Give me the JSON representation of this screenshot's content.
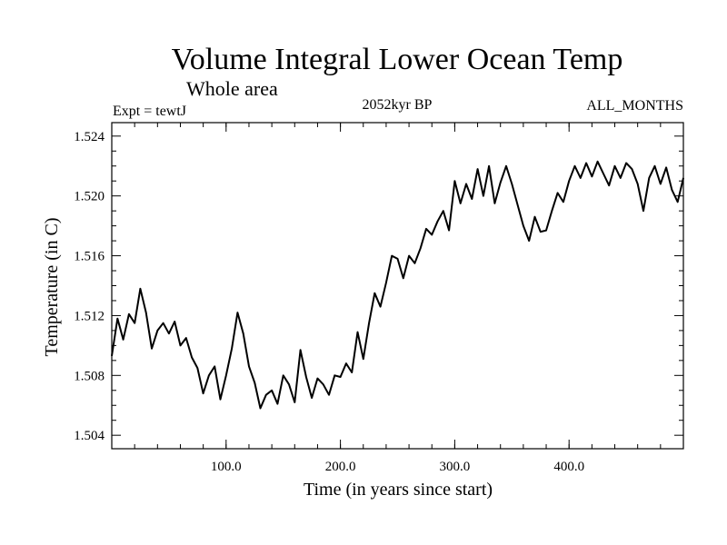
{
  "chart_data": {
    "type": "line",
    "title": "Volume Integral Lower Ocean Temp",
    "subtitle": "Whole area",
    "experiment_label": "Expt = tewtJ",
    "period_label": "2052kyr BP",
    "months_label": "ALL_MONTHS",
    "xlabel": "Time (in years since start)",
    "ylabel": "Temperature (in C)",
    "xlim": [
      0,
      500
    ],
    "ylim": [
      1.5031,
      1.5249
    ],
    "xticks": [
      100,
      200,
      300,
      400
    ],
    "xtick_labels": [
      "100.0",
      "200.0",
      "300.0",
      "400.0"
    ],
    "yticks": [
      1.504,
      1.508,
      1.512,
      1.516,
      1.52,
      1.524
    ],
    "ytick_labels": [
      "1.504",
      "1.508",
      "1.512",
      "1.516",
      "1.520",
      "1.524"
    ],
    "grid": false,
    "series": [
      {
        "name": "tewtJ",
        "x": [
          0,
          5,
          10,
          15,
          20,
          25,
          30,
          35,
          40,
          45,
          50,
          55,
          60,
          65,
          70,
          75,
          80,
          85,
          90,
          95,
          100,
          105,
          110,
          115,
          120,
          125,
          130,
          135,
          140,
          145,
          150,
          155,
          160,
          165,
          170,
          175,
          180,
          185,
          190,
          195,
          200,
          205,
          210,
          215,
          220,
          225,
          230,
          235,
          240,
          245,
          250,
          255,
          260,
          265,
          270,
          275,
          280,
          285,
          290,
          295,
          300,
          305,
          310,
          315,
          320,
          325,
          330,
          335,
          340,
          345,
          350,
          355,
          360,
          365,
          370,
          375,
          380,
          385,
          390,
          395,
          400,
          405,
          410,
          415,
          420,
          425,
          430,
          435,
          440,
          445,
          450,
          455,
          460,
          465,
          470,
          475,
          480,
          485,
          490,
          495,
          500
        ],
        "values": [
          1.5093,
          1.5118,
          1.5104,
          1.5121,
          1.5115,
          1.5138,
          1.5122,
          1.5098,
          1.511,
          1.5115,
          1.5108,
          1.5116,
          1.51,
          1.5105,
          1.5092,
          1.5085,
          1.5068,
          1.508,
          1.5086,
          1.5064,
          1.508,
          1.5098,
          1.5122,
          1.5108,
          1.5086,
          1.5075,
          1.5058,
          1.5067,
          1.507,
          1.5061,
          1.508,
          1.5074,
          1.5062,
          1.5097,
          1.5079,
          1.5065,
          1.5078,
          1.5074,
          1.5067,
          1.508,
          1.5079,
          1.5088,
          1.5082,
          1.5109,
          1.5091,
          1.5115,
          1.5135,
          1.5126,
          1.5142,
          1.516,
          1.5158,
          1.5145,
          1.516,
          1.5155,
          1.5165,
          1.5178,
          1.5174,
          1.5183,
          1.519,
          1.5177,
          1.521,
          1.5195,
          1.5208,
          1.5198,
          1.5218,
          1.52,
          1.522,
          1.5195,
          1.5209,
          1.522,
          1.5208,
          1.5194,
          1.518,
          1.517,
          1.5186,
          1.5176,
          1.5177,
          1.519,
          1.5202,
          1.5196,
          1.521,
          1.522,
          1.5212,
          1.5222,
          1.5213,
          1.5223,
          1.5215,
          1.5207,
          1.522,
          1.5212,
          1.5222,
          1.5218,
          1.5208,
          1.519,
          1.5212,
          1.522,
          1.5208,
          1.5219,
          1.5204,
          1.5196,
          1.5212
        ]
      }
    ]
  }
}
